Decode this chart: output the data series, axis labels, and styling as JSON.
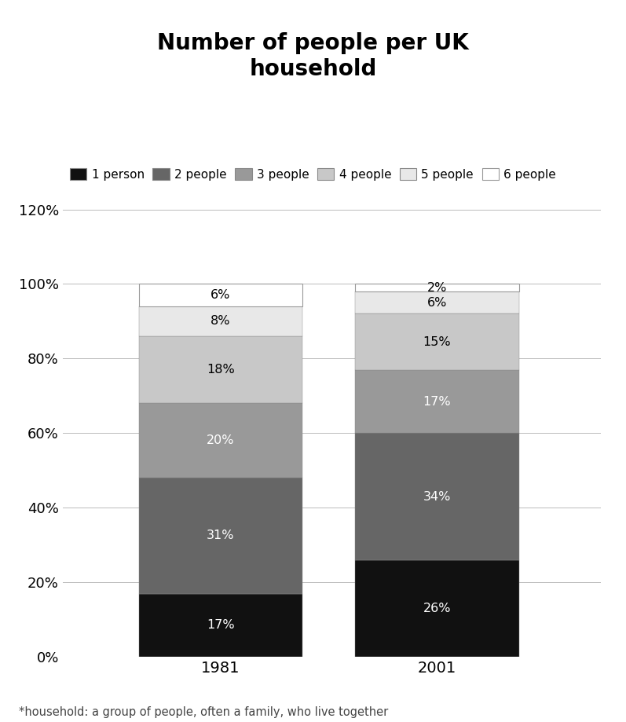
{
  "title": "Number of people per UK\nhousehold",
  "categories": [
    "1981",
    "2001"
  ],
  "segments": [
    {
      "label": "1 person",
      "values": [
        17,
        26
      ],
      "color": "#111111"
    },
    {
      "label": "2 people",
      "values": [
        31,
        34
      ],
      "color": "#666666"
    },
    {
      "label": "3 people",
      "values": [
        20,
        17
      ],
      "color": "#999999"
    },
    {
      "label": "4 people",
      "values": [
        18,
        15
      ],
      "color": "#c8c8c8"
    },
    {
      "label": "5 people",
      "values": [
        8,
        6
      ],
      "color": "#e8e8e8"
    },
    {
      "label": "6 people",
      "values": [
        6,
        2
      ],
      "color": "#ffffff"
    }
  ],
  "ylim": [
    0,
    120
  ],
  "yticks": [
    0,
    20,
    40,
    60,
    80,
    100,
    120
  ],
  "ytick_labels": [
    "0%",
    "20%",
    "40%",
    "60%",
    "80%",
    "100%",
    "120%"
  ],
  "footnote": "*household: a group of people, often a family, who live together",
  "bar_width": 0.28,
  "text_colors": {
    "1 person": "white",
    "2 people": "white",
    "3 people": "white",
    "4 people": "black",
    "5 people": "black",
    "6 people": "black"
  },
  "background_color": "#ffffff",
  "grid_color": "#bbbbbb",
  "x_positions": [
    0.35,
    0.72
  ]
}
